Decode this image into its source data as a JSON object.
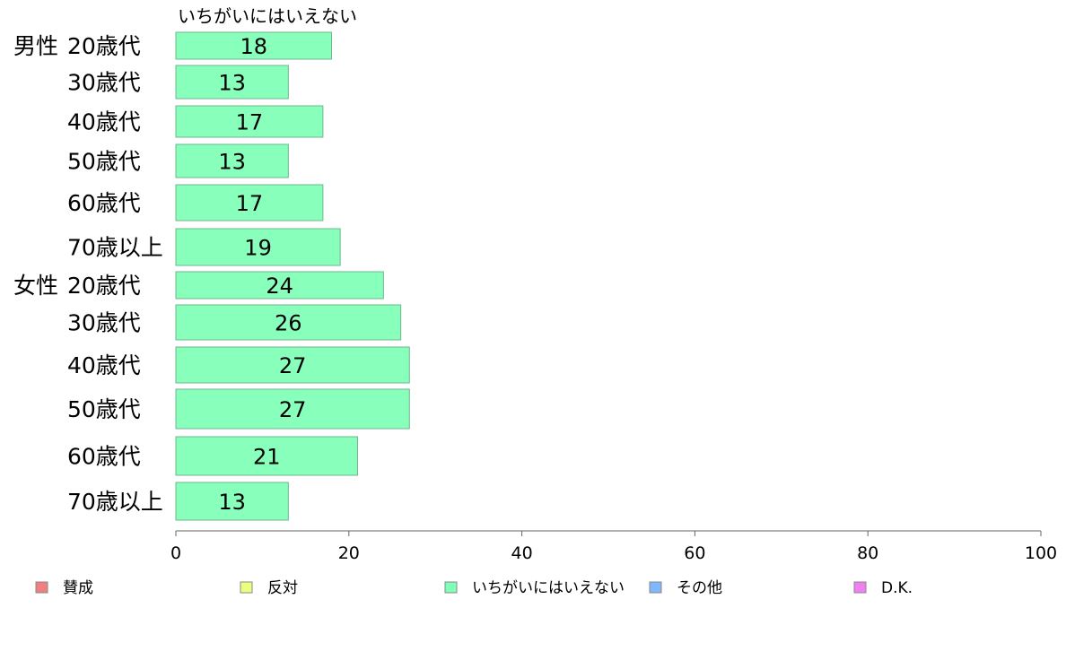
{
  "chart_data": {
    "type": "bar",
    "orientation": "horizontal",
    "series_header": "いちがいにはいえない",
    "groups": [
      {
        "label": "男性",
        "categories": [
          "20歳代",
          "30歳代",
          "40歳代",
          "50歳代",
          "60歳代",
          "70歳以上"
        ]
      },
      {
        "label": "女性",
        "categories": [
          "20歳代",
          "30歳代",
          "40歳代",
          "50歳代",
          "60歳代",
          "70歳以上"
        ]
      }
    ],
    "series": [
      {
        "name": "いちがいにはいえない",
        "values": [
          18,
          13,
          17,
          13,
          17,
          19,
          24,
          26,
          27,
          27,
          21,
          13
        ]
      }
    ],
    "data_labels": [
      "18",
      "13",
      "17",
      "13",
      "17",
      "19",
      "24",
      "26",
      "27",
      "27",
      "21",
      "13"
    ],
    "xlim": [
      0,
      100
    ],
    "xticks": [
      "0",
      "20",
      "40",
      "60",
      "80",
      "100"
    ],
    "grid": false,
    "legend_position": "bottom",
    "legend": [
      {
        "name": "賛成",
        "color": "#f08080"
      },
      {
        "name": "反対",
        "color": "#e8ff80"
      },
      {
        "name": "いちがいにはいえない",
        "color": "#80ffb8"
      },
      {
        "name": "その他",
        "color": "#80b8ff"
      },
      {
        "name": "D.K.",
        "color": "#f080f0"
      }
    ],
    "bar_color": "#88ffbb"
  }
}
